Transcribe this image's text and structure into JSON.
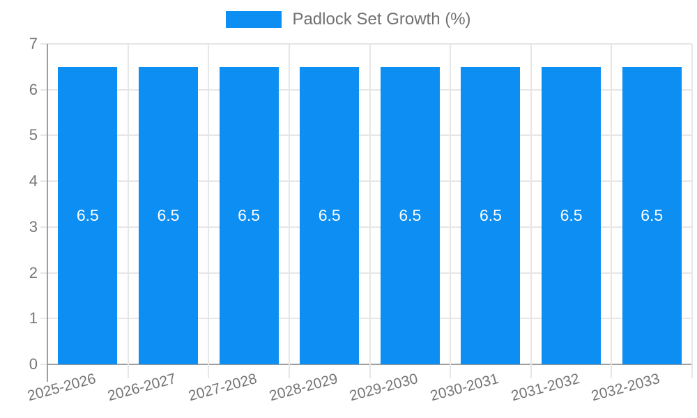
{
  "chart_data": {
    "type": "bar",
    "title": "Padlock Set Growth (%)",
    "categories": [
      "2025-2026",
      "2026-2027",
      "2027-2028",
      "2028-2029",
      "2029-2030",
      "2030-2031",
      "2031-2032",
      "2032-2033"
    ],
    "values": [
      6.5,
      6.5,
      6.5,
      6.5,
      6.5,
      6.5,
      6.5,
      6.5
    ],
    "bar_value_labels": [
      "6.5",
      "6.5",
      "6.5",
      "6.5",
      "6.5",
      "6.5",
      "6.5",
      "6.5"
    ],
    "xlabel": "",
    "ylabel": "",
    "ylim": [
      0,
      7
    ],
    "yticks": [
      0,
      1,
      2,
      3,
      4,
      5,
      6,
      7
    ],
    "legend_position": "top",
    "grid": true,
    "colors": {
      "bar": "#0d8ef2",
      "bar_label": "#ffffff",
      "axis_text": "#757575",
      "axis_line": "#9e9e9e",
      "gridline": "#e6e6e6",
      "background": "#ffffff"
    }
  }
}
